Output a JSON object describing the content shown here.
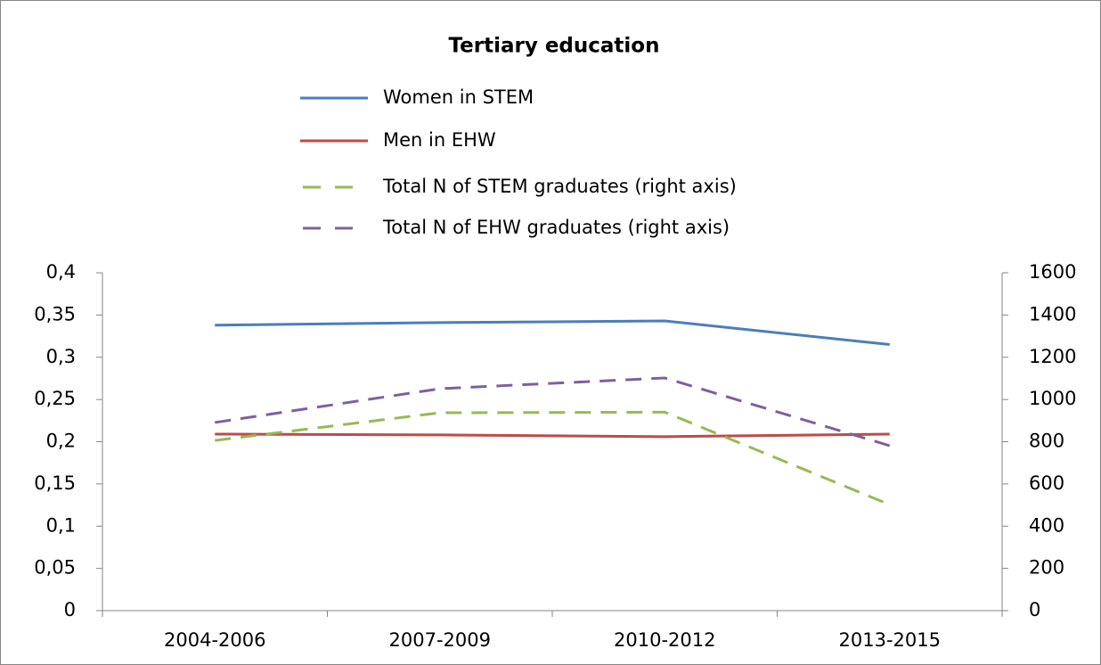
{
  "chart_data": {
    "type": "line",
    "title": "Tertiary education",
    "categories": [
      "2004-2006",
      "2007-2009",
      "2010-2012",
      "2013-2015"
    ],
    "series": [
      {
        "name": "Women in STEM",
        "color": "#4a7ebb",
        "values": [
          0.338,
          0.341,
          0.343,
          0.315
        ]
      },
      {
        "name": "Men in EHW",
        "color": "#be4b48",
        "values": [
          0.209,
          0.208,
          0.206,
          0.209
        ]
      },
      {
        "name": "Total N of STEM graduates (right axis)",
        "color": "#98b954",
        "values": [
          806,
          937,
          940,
          502
        ],
        "axis": "y2",
        "dashed": true
      },
      {
        "name": "Total N of EHW graduates (right axis)",
        "color": "#7d60a0",
        "values": [
          891,
          1051,
          1102,
          781
        ],
        "axis": "y2",
        "dashed": true
      }
    ],
    "ylim": [
      0,
      0.4
    ],
    "yticks": [
      0,
      {
        "value": 0.05,
        "label": "0,05"
      },
      {
        "value": 0.1,
        "label": "0,1"
      },
      {
        "value": 0.15,
        "label": "0,15"
      },
      {
        "value": 0.2,
        "label": "0,2"
      },
      {
        "value": 0.25,
        "label": "0,25"
      },
      {
        "value": 0.3,
        "label": "0,3"
      },
      {
        "value": 0.35,
        "label": "0,35"
      },
      {
        "value": 0.4,
        "label": "0,4"
      }
    ],
    "y2lim": [
      0,
      1600
    ],
    "y2ticks": [
      0,
      200,
      400,
      600,
      800,
      1000,
      1200,
      1400,
      1600
    ],
    "grid": false
  }
}
